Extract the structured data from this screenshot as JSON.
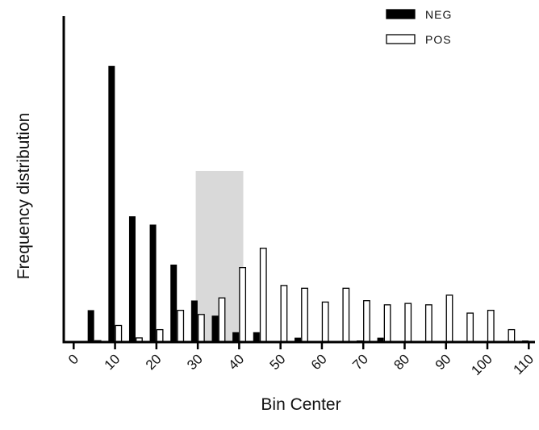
{
  "chart_data": {
    "type": "bar",
    "title": "",
    "xlabel": "Bin Center",
    "ylabel": "Frequency distribution",
    "x_ticks": [
      0,
      10,
      20,
      30,
      40,
      50,
      60,
      70,
      80,
      90,
      100,
      110
    ],
    "xlim": [
      -2,
      111
    ],
    "ylim": [
      0,
      100
    ],
    "y_ticks_labeled": false,
    "grid": false,
    "legend_position": "top-right",
    "highlight_region": {
      "x_range": [
        29.5,
        41
      ],
      "y_top": 62,
      "color": "#d9d9d9"
    },
    "bin_centers": [
      0,
      5,
      10,
      15,
      20,
      25,
      30,
      35,
      40,
      45,
      50,
      55,
      60,
      65,
      70,
      75,
      80,
      85,
      90,
      95,
      100,
      105,
      110
    ],
    "series": [
      {
        "name": "NEG",
        "fill": "#000000",
        "values": [
          0,
          11.5,
          100,
          45.5,
          42.5,
          28,
          15,
          9.5,
          3.5,
          3.5,
          0,
          1.5,
          0,
          0,
          0.5,
          1.5,
          0,
          0,
          0,
          0,
          0,
          0,
          0.5
        ]
      },
      {
        "name": "POS",
        "fill": "#ffffff",
        "values": [
          0,
          0.5,
          6,
          1.5,
          4.5,
          11.5,
          10,
          16,
          27,
          34,
          20.5,
          19.5,
          14.5,
          19.5,
          15,
          13.5,
          14,
          13.5,
          17,
          10.5,
          11.5,
          4.5,
          0
        ]
      }
    ]
  }
}
